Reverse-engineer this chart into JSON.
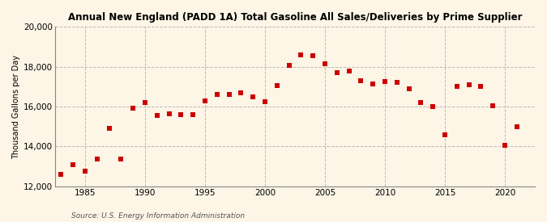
{
  "title": "Annual New England (PADD 1A) Total Gasoline All Sales/Deliveries by Prime Supplier",
  "ylabel": "Thousand Gallons per Day",
  "source": "Source: U.S. Energy Information Administration",
  "background_color": "#fdf5e6",
  "marker_color": "#cc0000",
  "years": [
    1983,
    1984,
    1985,
    1986,
    1987,
    1988,
    1989,
    1990,
    1991,
    1992,
    1993,
    1994,
    1995,
    1996,
    1997,
    1998,
    1999,
    2000,
    2001,
    2002,
    2003,
    2004,
    2005,
    2006,
    2007,
    2008,
    2009,
    2010,
    2011,
    2012,
    2013,
    2014,
    2015,
    2016,
    2017,
    2018,
    2019,
    2020,
    2021
  ],
  "values": [
    12600,
    13100,
    12750,
    13350,
    14900,
    13350,
    15900,
    16200,
    15550,
    15650,
    15600,
    15600,
    16300,
    16600,
    16600,
    16700,
    16500,
    16250,
    17050,
    18050,
    18600,
    18550,
    18150,
    17700,
    17800,
    17300,
    17150,
    17250,
    17200,
    16900,
    16200,
    16000,
    14600,
    17000,
    17100,
    17000,
    16050,
    14050,
    15000
  ],
  "ylim": [
    12000,
    20000
  ],
  "yticks": [
    12000,
    14000,
    16000,
    18000,
    20000
  ],
  "xticks": [
    1985,
    1990,
    1995,
    2000,
    2005,
    2010,
    2015,
    2020
  ],
  "xlim": [
    1982.5,
    2022.5
  ]
}
